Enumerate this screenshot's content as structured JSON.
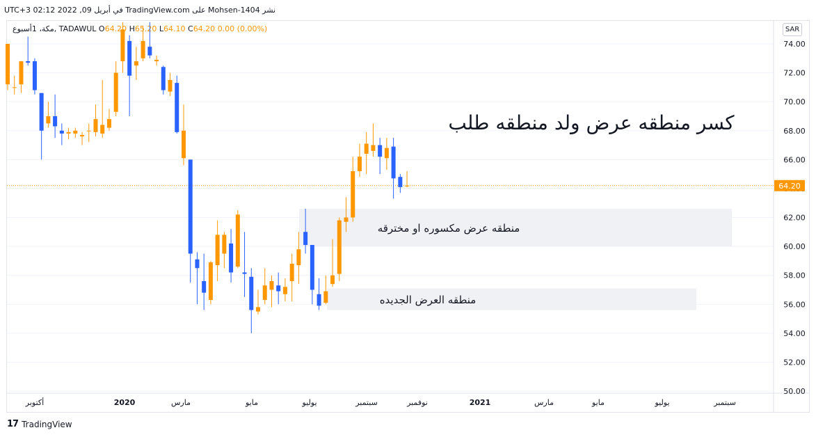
{
  "header": {
    "publish_text": "UTC+3 في أبريل 09, 2022 02:12 TradingView.com على Mohsen-1404 نشر"
  },
  "ohlc_bar": {
    "symbol": "مكة، 1أسبوع, TADAWUL",
    "o_label": "O",
    "o_value": "64.20",
    "h_label": "H",
    "h_value": "65.20",
    "l_label": "L",
    "l_value": "64.10",
    "c_label": "C",
    "c_value": "64.20",
    "change": "0.00 (0.00%)"
  },
  "currency_badge": "SAR",
  "annotations": {
    "main_title": "كسر منطقه عرض ولد منطقه طلب",
    "zone_broken": "منطقه عرض مكسوره او مخترقه",
    "zone_new": "منطقه العرض الجديده"
  },
  "footer": {
    "brand": "TradingView",
    "logo": "17"
  },
  "colors": {
    "up": "#ff9800",
    "down": "#2962ff",
    "zone": "#f0f1f4",
    "grid": "#f0f3fa",
    "price_line": "#ff9800",
    "axis_text": "#131722"
  },
  "chart_data": {
    "type": "candlestick",
    "symbol": "TADAWUL",
    "interval": "1W",
    "ylim": [
      50,
      75
    ],
    "y_ticks": [
      "74.00",
      "72.00",
      "70.00",
      "68.00",
      "66.00",
      "64.00",
      "62.00",
      "60.00",
      "58.00",
      "56.00",
      "54.00",
      "52.00",
      "50.00"
    ],
    "x_ticks": [
      "أكتوبر",
      "2020",
      "مارس",
      "مايو",
      "يوليو",
      "سبتمبر",
      "نوفمبر",
      "2021",
      "مارس",
      "مايو",
      "يوليو",
      "سبتمبر"
    ],
    "last_price": "64.20",
    "zones": [
      {
        "label_key": "zone_broken",
        "low": 60.0,
        "high": 62.6
      },
      {
        "label_key": "zone_new",
        "low": 55.6,
        "high": 57.1
      }
    ],
    "candles": [
      {
        "o": 71.2,
        "h": 74.0,
        "l": 70.8,
        "c": 74.0
      },
      {
        "o": 71.0,
        "h": 71.8,
        "l": 70.5,
        "c": 71.0
      },
      {
        "o": 71.2,
        "h": 72.8,
        "l": 70.6,
        "c": 72.8
      },
      {
        "o": 72.8,
        "h": 74.5,
        "l": 72.5,
        "c": 72.7
      },
      {
        "o": 72.8,
        "h": 73.0,
        "l": 70.5,
        "c": 70.8
      },
      {
        "o": 70.6,
        "h": 70.6,
        "l": 66.0,
        "c": 68.0
      },
      {
        "o": 68.5,
        "h": 70.0,
        "l": 68.2,
        "c": 69.0
      },
      {
        "o": 69.0,
        "h": 70.5,
        "l": 67.5,
        "c": 68.3
      },
      {
        "o": 68.0,
        "h": 68.5,
        "l": 67.0,
        "c": 67.8
      },
      {
        "o": 67.8,
        "h": 68.2,
        "l": 67.4,
        "c": 67.9
      },
      {
        "o": 67.8,
        "h": 68.2,
        "l": 67.5,
        "c": 68.0
      },
      {
        "o": 67.6,
        "h": 67.9,
        "l": 67.0,
        "c": 67.7
      },
      {
        "o": 68.0,
        "h": 68.5,
        "l": 67.2,
        "c": 68.0
      },
      {
        "o": 67.9,
        "h": 69.8,
        "l": 67.6,
        "c": 68.8
      },
      {
        "o": 67.8,
        "h": 71.5,
        "l": 67.5,
        "c": 68.4
      },
      {
        "o": 68.2,
        "h": 69.5,
        "l": 68.0,
        "c": 68.8
      },
      {
        "o": 69.3,
        "h": 72.8,
        "l": 69.0,
        "c": 72.0
      },
      {
        "o": 72.8,
        "h": 75.5,
        "l": 72.0,
        "c": 75.0
      },
      {
        "o": 74.2,
        "h": 74.6,
        "l": 69.0,
        "c": 71.8
      },
      {
        "o": 72.5,
        "h": 73.8,
        "l": 71.5,
        "c": 72.8
      },
      {
        "o": 73.0,
        "h": 75.2,
        "l": 72.8,
        "c": 74.2
      },
      {
        "o": 73.8,
        "h": 75.5,
        "l": 73.0,
        "c": 73.2
      },
      {
        "o": 72.8,
        "h": 73.2,
        "l": 72.5,
        "c": 72.9
      },
      {
        "o": 72.4,
        "h": 72.5,
        "l": 70.5,
        "c": 70.8
      },
      {
        "o": 70.7,
        "h": 72.0,
        "l": 70.4,
        "c": 71.5
      },
      {
        "o": 71.3,
        "h": 71.8,
        "l": 67.8,
        "c": 67.9
      },
      {
        "o": 66.1,
        "h": 69.8,
        "l": 65.6,
        "c": 68.0
      },
      {
        "o": 66.0,
        "h": 66.0,
        "l": 57.5,
        "c": 59.5
      },
      {
        "o": 59.1,
        "h": 59.6,
        "l": 56.0,
        "c": 58.5
      },
      {
        "o": 57.6,
        "h": 59.5,
        "l": 55.6,
        "c": 56.8
      },
      {
        "o": 56.3,
        "h": 59.0,
        "l": 56.0,
        "c": 58.9
      },
      {
        "o": 58.7,
        "h": 61.8,
        "l": 57.6,
        "c": 60.8
      },
      {
        "o": 59.5,
        "h": 61.0,
        "l": 58.5,
        "c": 60.8
      },
      {
        "o": 60.2,
        "h": 61.2,
        "l": 57.5,
        "c": 58.2
      },
      {
        "o": 58.6,
        "h": 62.5,
        "l": 58.5,
        "c": 62.2
      },
      {
        "o": 58.2,
        "h": 61.0,
        "l": 56.5,
        "c": 58.1
      },
      {
        "o": 57.9,
        "h": 58.5,
        "l": 54.0,
        "c": 55.6
      },
      {
        "o": 55.5,
        "h": 57.0,
        "l": 55.3,
        "c": 55.8
      },
      {
        "o": 56.3,
        "h": 58.5,
        "l": 56.0,
        "c": 57.3
      },
      {
        "o": 57.0,
        "h": 58.0,
        "l": 55.8,
        "c": 57.6
      },
      {
        "o": 57.3,
        "h": 58.2,
        "l": 56.0,
        "c": 56.9
      },
      {
        "o": 56.7,
        "h": 57.8,
        "l": 56.2,
        "c": 57.2
      },
      {
        "o": 57.6,
        "h": 59.5,
        "l": 56.2,
        "c": 58.8
      },
      {
        "o": 58.7,
        "h": 61.0,
        "l": 57.4,
        "c": 59.8
      },
      {
        "o": 61.0,
        "h": 62.6,
        "l": 59.5,
        "c": 60.1
      },
      {
        "o": 60.1,
        "h": 60.1,
        "l": 56.0,
        "c": 57.0
      },
      {
        "o": 56.7,
        "h": 57.8,
        "l": 55.6,
        "c": 55.9
      },
      {
        "o": 56.1,
        "h": 58.0,
        "l": 56.0,
        "c": 56.9
      },
      {
        "o": 57.4,
        "h": 60.5,
        "l": 57.2,
        "c": 58.0
      },
      {
        "o": 58.1,
        "h": 62.0,
        "l": 57.6,
        "c": 61.8
      },
      {
        "o": 61.7,
        "h": 63.4,
        "l": 61.0,
        "c": 62.0
      },
      {
        "o": 62.0,
        "h": 66.2,
        "l": 61.7,
        "c": 65.2
      },
      {
        "o": 65.2,
        "h": 67.1,
        "l": 64.8,
        "c": 66.2
      },
      {
        "o": 66.4,
        "h": 67.9,
        "l": 65.0,
        "c": 67.1
      },
      {
        "o": 66.6,
        "h": 68.5,
        "l": 66.2,
        "c": 67.0
      },
      {
        "o": 67.0,
        "h": 67.5,
        "l": 65.0,
        "c": 66.2
      },
      {
        "o": 66.1,
        "h": 67.5,
        "l": 65.3,
        "c": 66.8
      },
      {
        "o": 66.9,
        "h": 67.5,
        "l": 63.3,
        "c": 64.7
      },
      {
        "o": 64.8,
        "h": 65.0,
        "l": 63.7,
        "c": 64.1
      },
      {
        "o": 64.2,
        "h": 65.2,
        "l": 64.1,
        "c": 64.2
      }
    ]
  }
}
